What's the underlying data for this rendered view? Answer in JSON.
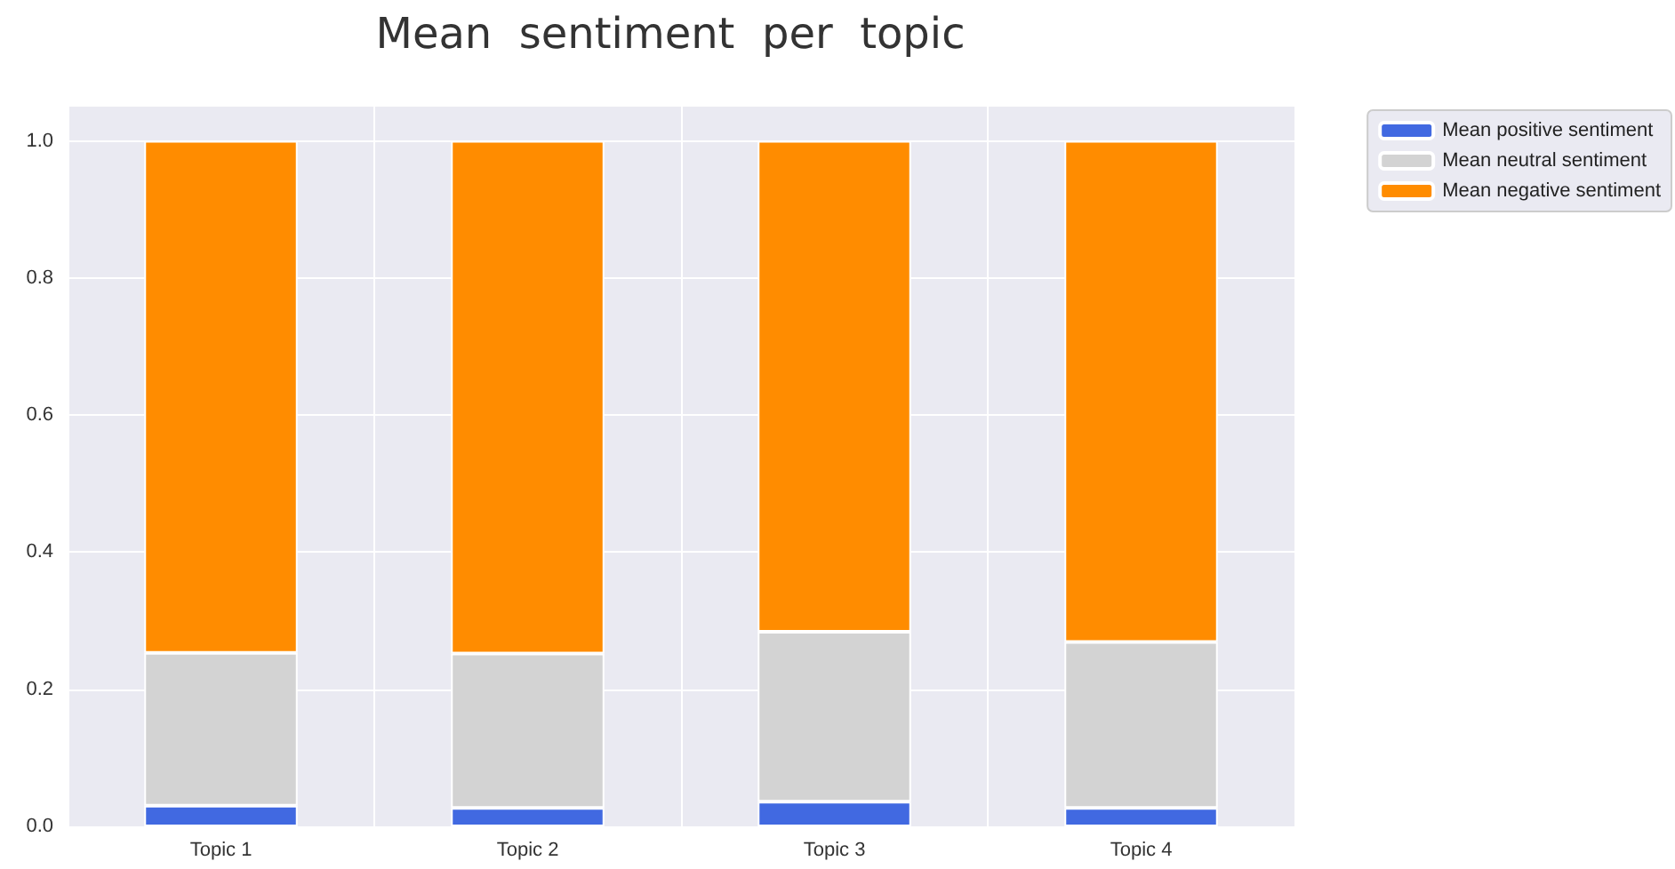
{
  "chart_data": {
    "type": "bar",
    "title": "Mean  sentiment  per  topic",
    "categories": [
      "Topic 1",
      "Topic 2",
      "Topic 3",
      "Topic 4"
    ],
    "stacked": true,
    "series": [
      {
        "name": "Mean positive sentiment",
        "color": "#4169e1",
        "values": [
          0.03,
          0.027,
          0.036,
          0.027
        ]
      },
      {
        "name": "Mean neutral sentiment",
        "color": "#d3d3d3",
        "values": [
          0.223,
          0.225,
          0.248,
          0.242
        ]
      },
      {
        "name": "Mean negative sentiment",
        "color": "#ff8c00",
        "values": [
          0.747,
          0.748,
          0.716,
          0.731
        ]
      }
    ],
    "ylim": [
      0,
      1.05
    ],
    "yticks": [
      {
        "value": 0,
        "label": "0.0"
      },
      {
        "value": 0.2,
        "label": "0.2"
      },
      {
        "value": 0.4,
        "label": "0.4"
      },
      {
        "value": 0.6,
        "label": "0.6"
      },
      {
        "value": 0.8,
        "label": "0.8"
      },
      {
        "value": 1,
        "label": "1.0"
      }
    ],
    "grid": true,
    "legend": "top right"
  }
}
